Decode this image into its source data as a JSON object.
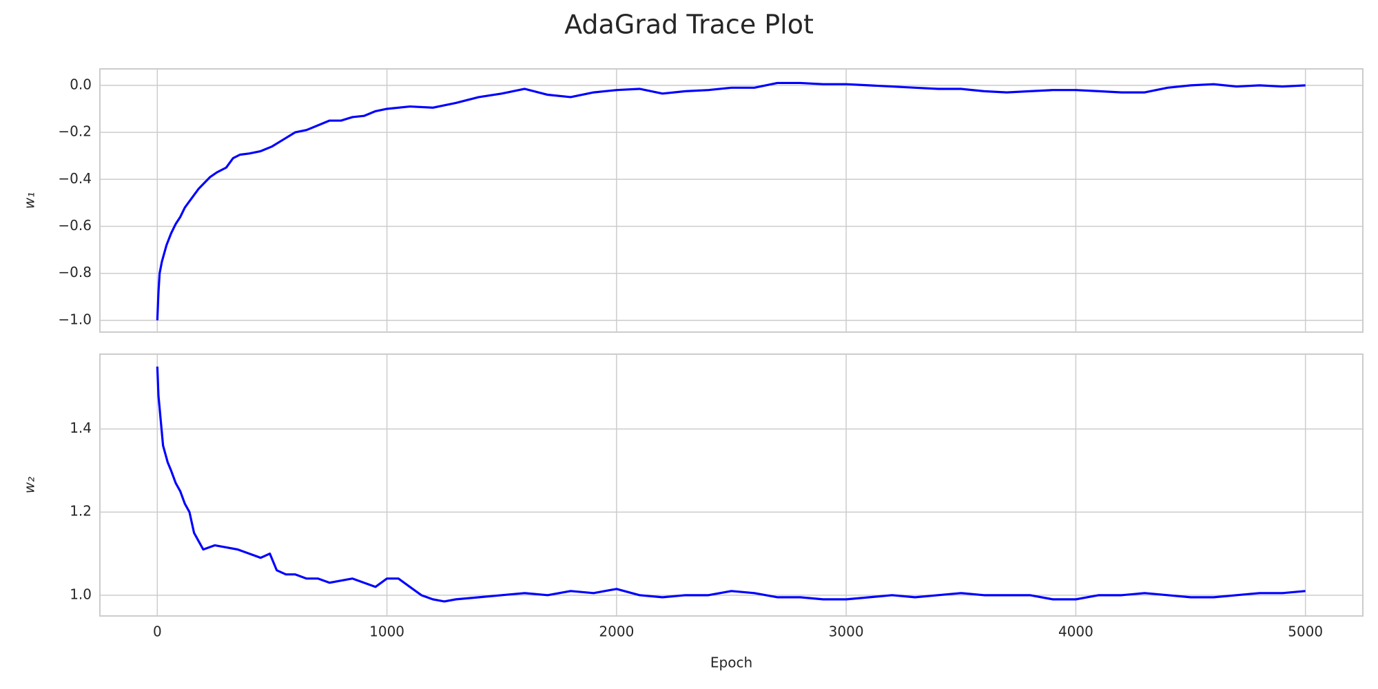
{
  "chart_data": [
    {
      "type": "line",
      "title": "AdaGrad Trace Plot",
      "ylabel": "w₁",
      "x": [
        0,
        5,
        10,
        20,
        40,
        60,
        80,
        100,
        120,
        150,
        180,
        200,
        230,
        260,
        300,
        330,
        360,
        400,
        450,
        500,
        550,
        600,
        650,
        700,
        750,
        800,
        850,
        900,
        950,
        1000,
        1100,
        1200,
        1300,
        1400,
        1500,
        1600,
        1700,
        1800,
        1900,
        2000,
        2100,
        2200,
        2300,
        2400,
        2500,
        2600,
        2700,
        2800,
        2900,
        3000,
        3100,
        3200,
        3300,
        3400,
        3500,
        3600,
        3700,
        3800,
        3900,
        4000,
        4100,
        4200,
        4300,
        4400,
        4500,
        4600,
        4700,
        4800,
        4900,
        5000
      ],
      "series": [
        {
          "color": "#0000ff",
          "values": [
            -1.0,
            -0.88,
            -0.8,
            -0.75,
            -0.68,
            -0.63,
            -0.59,
            -0.56,
            -0.52,
            -0.48,
            -0.44,
            -0.42,
            -0.39,
            -0.37,
            -0.35,
            -0.31,
            -0.295,
            -0.29,
            -0.28,
            -0.26,
            -0.23,
            -0.2,
            -0.19,
            -0.17,
            -0.15,
            -0.15,
            -0.135,
            -0.13,
            -0.11,
            -0.1,
            -0.09,
            -0.095,
            -0.075,
            -0.05,
            -0.035,
            -0.015,
            -0.04,
            -0.05,
            -0.03,
            -0.02,
            -0.015,
            -0.035,
            -0.025,
            -0.02,
            -0.01,
            -0.01,
            0.01,
            0.01,
            0.005,
            0.005,
            0.0,
            -0.005,
            -0.01,
            -0.015,
            -0.015,
            -0.025,
            -0.03,
            -0.025,
            -0.02,
            -0.02,
            -0.025,
            -0.03,
            -0.03,
            -0.01,
            0.0,
            0.005,
            -0.005,
            0.0,
            -0.005,
            0.0
          ]
        }
      ],
      "xlim": [
        -250,
        5250
      ],
      "xticks": [
        0,
        1000,
        2000,
        3000,
        4000,
        5000
      ],
      "ylim": [
        -1.05,
        0.07
      ],
      "yticks": [
        {
          "value": -1.0,
          "label": "−1.0"
        },
        {
          "value": -0.8,
          "label": "−0.8"
        },
        {
          "value": -0.6,
          "label": "−0.6"
        },
        {
          "value": -0.4,
          "label": "−0.4"
        },
        {
          "value": -0.2,
          "label": "−0.2"
        },
        {
          "value": 0.0,
          "label": "0.0"
        }
      ],
      "grid": true
    },
    {
      "type": "line",
      "ylabel": "w₂",
      "xlabel": "Epoch",
      "x": [
        0,
        5,
        15,
        25,
        35,
        45,
        60,
        80,
        100,
        120,
        140,
        160,
        180,
        200,
        250,
        300,
        350,
        400,
        450,
        490,
        520,
        560,
        600,
        650,
        700,
        750,
        800,
        850,
        900,
        950,
        1000,
        1050,
        1100,
        1150,
        1200,
        1250,
        1300,
        1400,
        1500,
        1600,
        1700,
        1800,
        1900,
        2000,
        2100,
        2200,
        2300,
        2400,
        2500,
        2600,
        2700,
        2800,
        2900,
        3000,
        3100,
        3200,
        3300,
        3400,
        3500,
        3600,
        3700,
        3800,
        3900,
        4000,
        4100,
        4200,
        4300,
        4400,
        4500,
        4600,
        4700,
        4800,
        4900,
        5000
      ],
      "series": [
        {
          "color": "#0000ff",
          "values": [
            1.55,
            1.48,
            1.42,
            1.36,
            1.34,
            1.32,
            1.3,
            1.27,
            1.25,
            1.22,
            1.2,
            1.15,
            1.13,
            1.11,
            1.12,
            1.115,
            1.11,
            1.1,
            1.09,
            1.1,
            1.06,
            1.05,
            1.05,
            1.04,
            1.04,
            1.03,
            1.035,
            1.04,
            1.03,
            1.02,
            1.04,
            1.04,
            1.02,
            1.0,
            0.99,
            0.985,
            0.99,
            0.995,
            1.0,
            1.005,
            1.0,
            1.01,
            1.005,
            1.015,
            1.0,
            0.995,
            1.0,
            1.0,
            1.01,
            1.005,
            0.995,
            0.995,
            0.99,
            0.99,
            0.995,
            1.0,
            0.995,
            1.0,
            1.005,
            1.0,
            1.0,
            1.0,
            0.99,
            0.99,
            1.0,
            1.0,
            1.005,
            1.0,
            0.995,
            0.995,
            1.0,
            1.005,
            1.005,
            1.01
          ]
        }
      ],
      "xlim": [
        -250,
        5250
      ],
      "xticks": [
        0,
        1000,
        2000,
        3000,
        4000,
        5000
      ],
      "ylim": [
        0.95,
        1.58
      ],
      "yticks": [
        {
          "value": 1.0,
          "label": "1.0"
        },
        1.2,
        1.4
      ],
      "grid": true
    }
  ]
}
